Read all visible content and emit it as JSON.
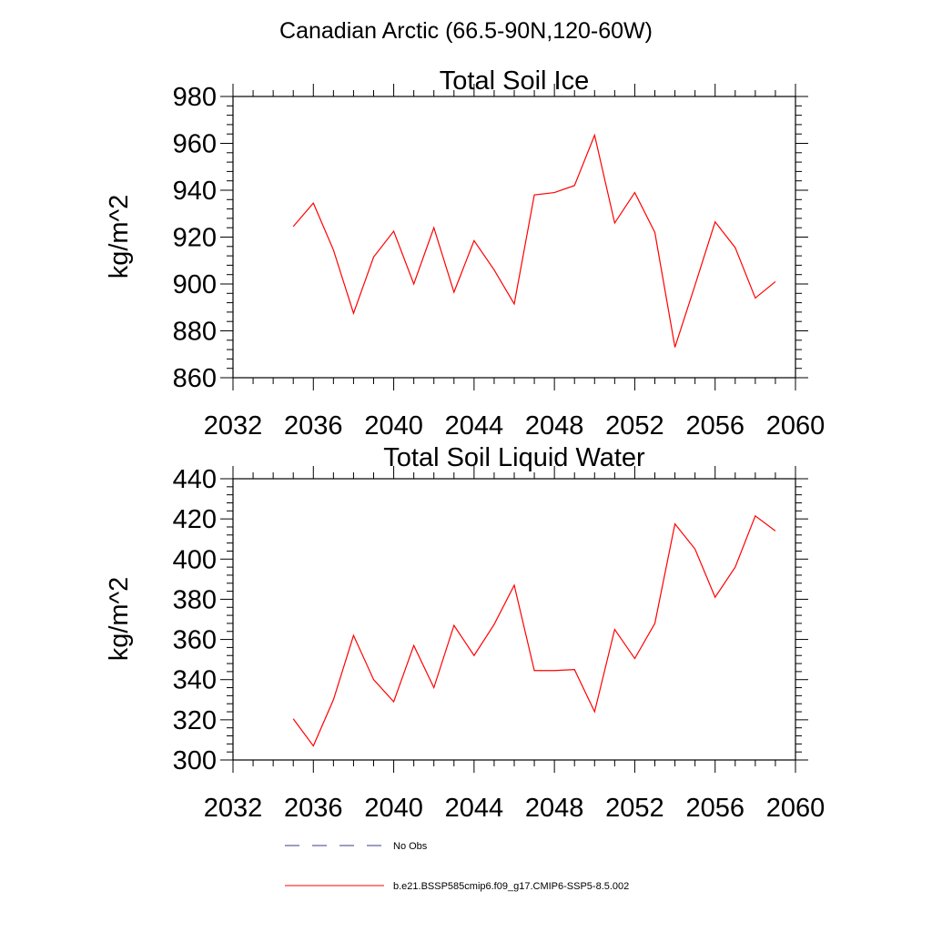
{
  "figure_title": "Canadian Arctic (66.5-90N,120-60W)",
  "legend": {
    "items": [
      {
        "label": "No Obs",
        "color": "#3b3b8a",
        "dash": true
      },
      {
        "label": "b.e21.BSSP585cmip6.f09_g17.CMIP6-SSP5-8.5.002",
        "color": "#ff0000",
        "dash": false
      }
    ]
  },
  "chart_data": [
    {
      "type": "line",
      "title": "Total Soil Ice",
      "ylabel": "kg/m^2",
      "xlabel": "",
      "xlim": [
        2032,
        2060
      ],
      "ylim": [
        860,
        980
      ],
      "xticks": [
        2032,
        2036,
        2040,
        2044,
        2048,
        2052,
        2056,
        2060
      ],
      "yticks": [
        860,
        880,
        900,
        920,
        940,
        960,
        980
      ],
      "series": [
        {
          "color": "#ff0000",
          "x": [
            2035,
            2036,
            2037,
            2038,
            2039,
            2040,
            2041,
            2042,
            2043,
            2044,
            2045,
            2046,
            2047,
            2048,
            2049,
            2050,
            2051,
            2052,
            2053,
            2054,
            2055,
            2056,
            2057,
            2058,
            2059
          ],
          "y": [
            924.5,
            934.5,
            914.5,
            887.5,
            911.5,
            922.5,
            900,
            924,
            896.5,
            918.5,
            906,
            891.5,
            938,
            939,
            942,
            963.5,
            926,
            939,
            922,
            873,
            899.5,
            926.5,
            915.5,
            894,
            901
          ]
        }
      ]
    },
    {
      "type": "line",
      "title": "Total Soil Liquid Water",
      "ylabel": "kg/m^2",
      "xlabel": "",
      "xlim": [
        2032,
        2060
      ],
      "ylim": [
        300,
        440
      ],
      "xticks": [
        2032,
        2036,
        2040,
        2044,
        2048,
        2052,
        2056,
        2060
      ],
      "yticks": [
        300,
        320,
        340,
        360,
        380,
        400,
        420,
        440
      ],
      "series": [
        {
          "color": "#ff0000",
          "x": [
            2035,
            2036,
            2037,
            2038,
            2039,
            2040,
            2041,
            2042,
            2043,
            2044,
            2045,
            2046,
            2047,
            2048,
            2049,
            2050,
            2051,
            2052,
            2053,
            2054,
            2055,
            2056,
            2057,
            2058,
            2059
          ],
          "y": [
            320.5,
            307,
            330,
            362,
            340,
            329,
            357,
            336,
            367,
            352,
            367.5,
            387,
            344.5,
            344.5,
            345,
            324,
            365,
            350.5,
            368,
            417.5,
            405,
            381,
            396,
            421.5,
            414
          ]
        }
      ]
    }
  ]
}
